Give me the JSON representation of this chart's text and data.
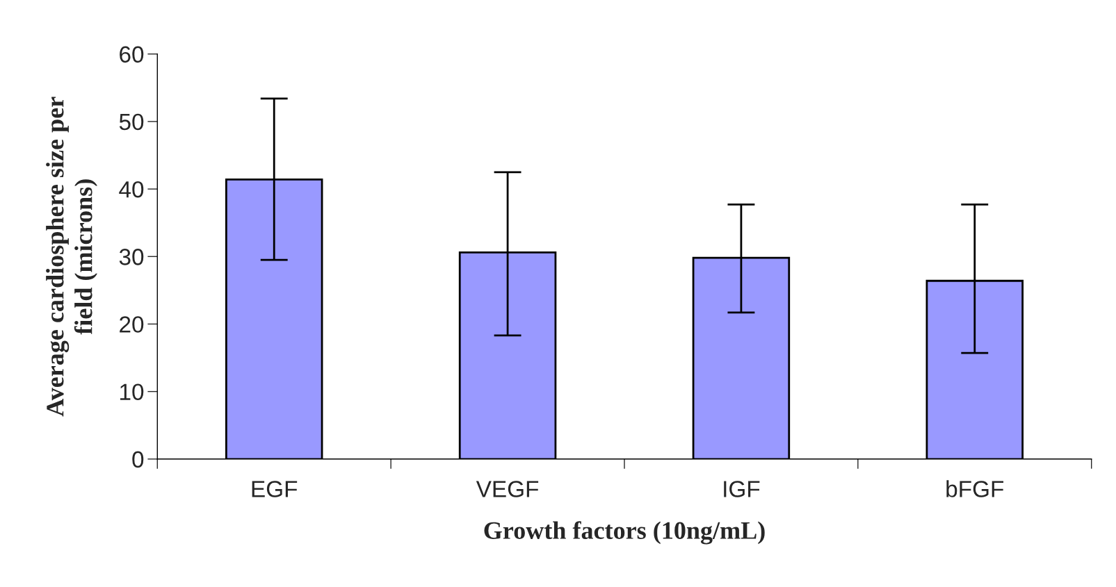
{
  "chart_data": {
    "type": "bar",
    "xlabel": "Growth factors (10ng/mL)",
    "ylabel": "Average cardiosphere size per\nfield (microns)",
    "categories": [
      "EGF",
      "VEGF",
      "IGF",
      "bFGF"
    ],
    "values": [
      41.4,
      30.6,
      29.8,
      26.4
    ],
    "errors": [
      [
        29.5,
        53.4
      ],
      [
        18.3,
        42.5
      ],
      [
        21.7,
        37.7
      ],
      [
        15.7,
        37.7
      ]
    ],
    "color": "#9999ff",
    "ylim": [
      0,
      60
    ],
    "yticks": [
      0,
      10,
      20,
      30,
      40,
      50,
      60
    ],
    "grid": false
  }
}
